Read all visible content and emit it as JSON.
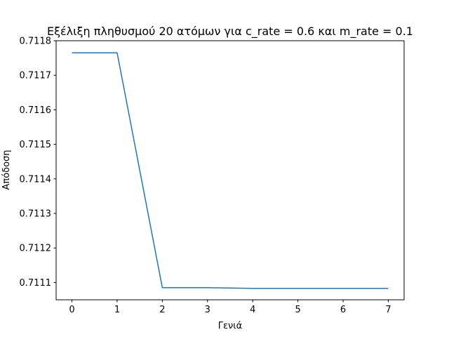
{
  "chart_data": {
    "type": "line",
    "title": "Εξέλιξη πληθυσμού 20 ατόμων για c_rate = 0.6 και m_rate = 0.1",
    "xlabel": "Γενιά",
    "ylabel": "Απόδοση",
    "x": [
      0,
      1,
      2,
      3,
      4,
      5,
      6,
      7
    ],
    "series": [
      {
        "values": [
          0.711765,
          0.711765,
          0.711085,
          0.711085,
          0.711083,
          0.711083,
          0.711083,
          0.711083
        ],
        "color": "#1f77b4"
      }
    ],
    "xlim": [
      -0.35,
      7.35
    ],
    "ylim": [
      0.71105,
      0.7118
    ],
    "xticks": [
      "0",
      "1",
      "2",
      "3",
      "4",
      "5",
      "6",
      "7"
    ],
    "yticks": [
      "0.7111",
      "0.7112",
      "0.7113",
      "0.7114",
      "0.7115",
      "0.7116",
      "0.7117",
      "0.7118"
    ],
    "grid": false
  }
}
